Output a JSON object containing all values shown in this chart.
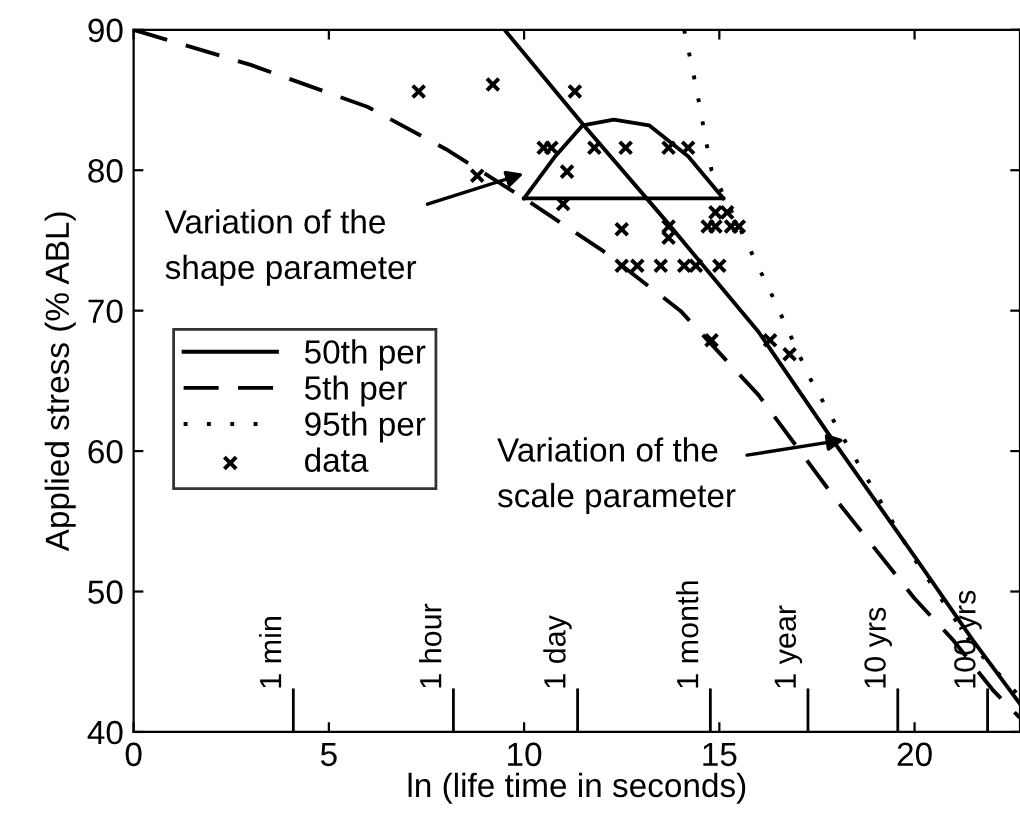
{
  "chart_data": {
    "type": "line",
    "xlabel": "ln (life time in seconds)",
    "ylabel": "Applied stress (% ABL)",
    "xlim": [
      0,
      22.7
    ],
    "ylim": [
      40,
      90
    ],
    "xticks": [
      0,
      5,
      10,
      15,
      20
    ],
    "yticks": [
      40,
      50,
      60,
      70,
      80,
      90
    ],
    "grid": false,
    "legend": "left",
    "series": [
      {
        "name": "50th per",
        "color": "#000000",
        "line_style": "solid",
        "marker": "none",
        "x": [
          9.5,
          11.5,
          13.6,
          16,
          17.9,
          20,
          21.5,
          22.7
        ],
        "values": [
          90,
          83.3,
          76.5,
          68.5,
          60.8,
          52.5,
          46.5,
          42
        ]
      },
      {
        "name": "5th per",
        "type": "line",
        "color": "#000000",
        "line_style": "dashed",
        "marker": "none",
        "x": [
          0,
          3,
          6,
          8,
          10,
          12,
          14,
          16,
          18,
          20,
          21,
          22,
          22.7
        ],
        "values": [
          90,
          87.5,
          84.5,
          81.5,
          78,
          74.3,
          70,
          64,
          56.5,
          49.5,
          46.5,
          43,
          41
        ]
      },
      {
        "name": "95th per",
        "type": "line",
        "color": "#000000",
        "line_style": "dotted",
        "marker": "none",
        "x": [
          14.1,
          14.4,
          14.8,
          15.5,
          16.4,
          17.3,
          18.2,
          20,
          21.5,
          22.7
        ],
        "values": [
          90,
          86,
          80,
          76,
          70.8,
          65.3,
          60.8,
          52.3,
          46.1,
          42.5
        ]
      },
      {
        "name": "data",
        "type": "scatter",
        "color": "#000000",
        "marker": "cross",
        "x": [
          7.3,
          9.2,
          11.3,
          8.8,
          10.5,
          10.7,
          11.1,
          11.0,
          11.8,
          12.6,
          13.7,
          14.2,
          12.5,
          12.5,
          12.9,
          13.5,
          14.1,
          14.4,
          15.0,
          13.7,
          13.7,
          14.9,
          15.2,
          14.7,
          14.9,
          15.3,
          15.5,
          14.8,
          16.3,
          16.8
        ],
        "values": [
          85.6,
          86.1,
          85.6,
          79.6,
          81.6,
          81.6,
          79.9,
          77.6,
          81.6,
          81.6,
          81.6,
          81.6,
          75.8,
          73.2,
          73.2,
          73.2,
          73.2,
          73.2,
          73.2,
          76.0,
          75.2,
          77.0,
          77.0,
          76.0,
          76.0,
          76.0,
          76.0,
          67.9,
          67.9,
          66.9
        ]
      },
      {
        "color": "#000000",
        "line_style": "solid",
        "marker": "none",
        "x": [
          10,
          10.8,
          11.5,
          12.3,
          13.2,
          14.2,
          15.1
        ],
        "values": [
          78,
          81,
          83.2,
          83.6,
          83.2,
          81,
          78
        ]
      },
      {
        "color": "#000000",
        "line_style": "solid",
        "marker": "none",
        "x": [
          10,
          15.1
        ],
        "values": [
          78,
          78
        ]
      }
    ],
    "ref_lines": [
      {
        "axis": "x",
        "value": 4.09,
        "label": "1 min"
      },
      {
        "axis": "x",
        "value": 8.19,
        "label": "1 hour"
      },
      {
        "axis": "x",
        "value": 11.37,
        "label": "1 day"
      },
      {
        "axis": "x",
        "value": 14.77,
        "label": "1 month"
      },
      {
        "axis": "x",
        "value": 17.27,
        "label": "1 year"
      },
      {
        "axis": "x",
        "value": 19.57,
        "label": "10 yrs"
      },
      {
        "axis": "x",
        "value": 21.87,
        "label": "100 yrs"
      }
    ],
    "annotations": [
      "Variation of the\nshape parameter",
      {
        "text": "Variation of the\nscale parameter",
        "x": 18.2,
        "y": 60.8
      }
    ]
  }
}
